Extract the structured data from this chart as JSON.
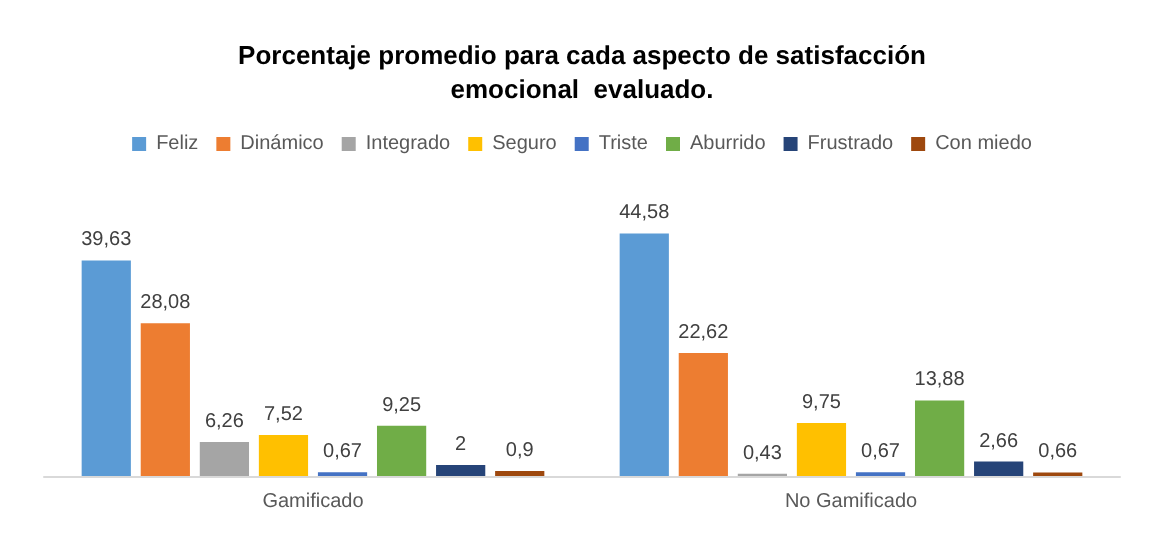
{
  "chart_data": {
    "type": "bar",
    "title": "Porcentaje promedio para cada aspecto de satisfacción\nemocional  evaluado.",
    "categories": [
      "Gamificado",
      "No Gamificado"
    ],
    "legend": "top",
    "series": [
      {
        "name": "Feliz",
        "color": "#5b9bd5",
        "values": [
          39.63,
          44.58
        ],
        "value_labels": [
          "39,63",
          "44,58"
        ]
      },
      {
        "name": "Dinámico",
        "color": "#ed7d31",
        "values": [
          28.08,
          22.62
        ],
        "value_labels": [
          "28,08",
          "22,62"
        ]
      },
      {
        "name": "Integrado",
        "color": "#a5a5a5",
        "values": [
          6.26,
          0.43
        ],
        "value_labels": [
          "6,26",
          "0,43"
        ]
      },
      {
        "name": "Seguro",
        "color": "#ffc000",
        "values": [
          7.52,
          9.75
        ],
        "value_labels": [
          "7,52",
          "9,75"
        ]
      },
      {
        "name": "Triste",
        "color": "#4472c4",
        "values": [
          0.67,
          0.67
        ],
        "value_labels": [
          "0,67",
          "0,67"
        ]
      },
      {
        "name": "Aburrido",
        "color": "#70ad47",
        "values": [
          9.25,
          13.88
        ],
        "value_labels": [
          "9,25",
          "13,88"
        ]
      },
      {
        "name": "Frustrado",
        "color": "#264478",
        "values": [
          2,
          2.66
        ],
        "value_labels": [
          "2",
          "2,66"
        ]
      },
      {
        "name": "Con miedo",
        "color": "#9e480e",
        "values": [
          0.9,
          0.66
        ],
        "value_labels": [
          "0,9",
          "0,66"
        ]
      }
    ]
  }
}
